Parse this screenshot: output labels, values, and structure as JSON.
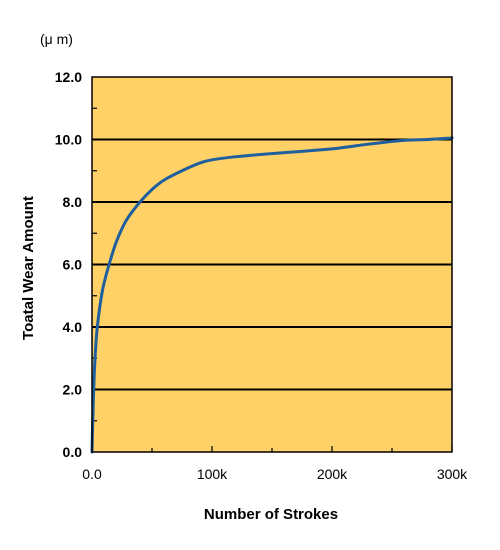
{
  "chart_data": {
    "type": "line",
    "unit_label": "(μ m)",
    "xlabel": "Number of Strokes",
    "ylabel": "Toatal Wear Amount",
    "xlim": [
      0,
      300000
    ],
    "ylim": [
      0,
      12
    ],
    "x_ticks": [
      {
        "value": 0,
        "label": "0.0"
      },
      {
        "value": 100000,
        "label": "100k"
      },
      {
        "value": 200000,
        "label": "200k"
      },
      {
        "value": 300000,
        "label": "300k"
      }
    ],
    "y_ticks": [
      {
        "value": 0,
        "label": "0.0"
      },
      {
        "value": 2,
        "label": "2.0"
      },
      {
        "value": 4,
        "label": "4.0"
      },
      {
        "value": 6,
        "label": "6.0"
      },
      {
        "value": 8,
        "label": "8.0"
      },
      {
        "value": 10,
        "label": "10.0"
      },
      {
        "value": 12,
        "label": "12.0"
      }
    ],
    "grid": "horizontal",
    "background_color": "#FFD166",
    "line_color": "#1F5F9E",
    "series": [
      {
        "x": [
          0,
          1000,
          2000,
          3500,
          5000,
          7500,
          10000,
          15000,
          20000,
          25000,
          30000,
          40000,
          50000,
          60000,
          75000,
          90000,
          100000,
          120000,
          150000,
          200000,
          230000,
          260000,
          280000,
          300000
        ],
        "values": [
          0.0,
          1.5,
          2.6,
          3.6,
          4.2,
          4.9,
          5.4,
          6.1,
          6.7,
          7.15,
          7.5,
          8.0,
          8.4,
          8.7,
          9.0,
          9.25,
          9.35,
          9.45,
          9.55,
          9.7,
          9.85,
          9.97,
          10.0,
          10.05
        ]
      }
    ]
  }
}
